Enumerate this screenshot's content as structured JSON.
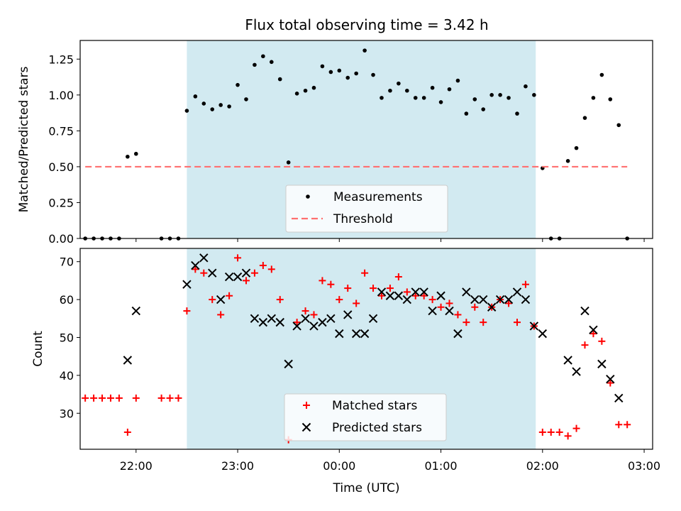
{
  "chart_data": [
    {
      "type": "scatter",
      "title": "Flux total observing time = 3.42 h",
      "xlabel": "",
      "ylabel": "Matched/Predicted stars",
      "ylim": [
        0,
        1.38
      ],
      "yticks": [
        "0.00",
        "0.25",
        "0.50",
        "0.75",
        "1.00",
        "1.25"
      ],
      "xlim": [
        "21:27",
        "03:05"
      ],
      "shaded_interval": [
        "22:30",
        "01:56"
      ],
      "shaded_color": "#add8e6",
      "legend_placement": "lower center",
      "series": [
        {
          "name": "Measurements",
          "marker": "dot",
          "color": "#000000",
          "points": [
            [
              "21:30",
              0
            ],
            [
              "21:35",
              0
            ],
            [
              "21:40",
              0
            ],
            [
              "21:45",
              0
            ],
            [
              "21:50",
              0
            ],
            [
              "21:55",
              0.57
            ],
            [
              "22:00",
              0.59
            ],
            [
              "22:15",
              0
            ],
            [
              "22:20",
              0
            ],
            [
              "22:25",
              0
            ],
            [
              "22:30",
              0.89
            ],
            [
              "22:35",
              0.99
            ],
            [
              "22:40",
              0.94
            ],
            [
              "22:45",
              0.9
            ],
            [
              "22:50",
              0.93
            ],
            [
              "22:55",
              0.92
            ],
            [
              "23:00",
              1.07
            ],
            [
              "23:05",
              0.97
            ],
            [
              "23:10",
              1.21
            ],
            [
              "23:15",
              1.27
            ],
            [
              "23:20",
              1.23
            ],
            [
              "23:25",
              1.11
            ],
            [
              "23:30",
              0.53
            ],
            [
              "23:35",
              1.01
            ],
            [
              "23:40",
              1.03
            ],
            [
              "23:45",
              1.05
            ],
            [
              "23:50",
              1.2
            ],
            [
              "23:55",
              1.16
            ],
            [
              "00:00",
              1.17
            ],
            [
              "00:05",
              1.12
            ],
            [
              "00:10",
              1.15
            ],
            [
              "00:15",
              1.31
            ],
            [
              "00:20",
              1.14
            ],
            [
              "00:25",
              0.98
            ],
            [
              "00:30",
              1.03
            ],
            [
              "00:35",
              1.08
            ],
            [
              "00:40",
              1.03
            ],
            [
              "00:45",
              0.98
            ],
            [
              "00:50",
              0.98
            ],
            [
              "00:55",
              1.05
            ],
            [
              "01:00",
              0.95
            ],
            [
              "01:05",
              1.04
            ],
            [
              "01:10",
              1.1
            ],
            [
              "01:15",
              0.87
            ],
            [
              "01:20",
              0.97
            ],
            [
              "01:25",
              0.9
            ],
            [
              "01:30",
              1.0
            ],
            [
              "01:35",
              1.0
            ],
            [
              "01:40",
              0.98
            ],
            [
              "01:45",
              0.87
            ],
            [
              "01:50",
              1.06
            ],
            [
              "01:55",
              1.0
            ],
            [
              "02:00",
              0.49
            ],
            [
              "02:05",
              0
            ],
            [
              "02:10",
              0
            ],
            [
              "02:15",
              0.54
            ],
            [
              "02:20",
              0.63
            ],
            [
              "02:25",
              0.84
            ],
            [
              "02:30",
              0.98
            ],
            [
              "02:35",
              1.14
            ],
            [
              "02:40",
              0.97
            ],
            [
              "02:45",
              0.79
            ],
            [
              "02:50",
              0
            ]
          ]
        },
        {
          "name": "Threshold",
          "marker": "dashed-line",
          "color": "#ff7070",
          "points": [
            [
              "21:30",
              0.5
            ],
            [
              "02:50",
              0.5
            ]
          ]
        }
      ]
    },
    {
      "type": "scatter",
      "title": "",
      "xlabel": "Time (UTC)",
      "ylabel": "Count",
      "ylim": [
        20.5,
        73.5
      ],
      "yticks": [
        "30",
        "40",
        "50",
        "60",
        "70"
      ],
      "xlim": [
        "21:27",
        "03:05"
      ],
      "xticks": [
        "22:00",
        "23:00",
        "00:00",
        "01:00",
        "02:00",
        "03:00"
      ],
      "shaded_interval": [
        "22:30",
        "01:56"
      ],
      "shaded_color": "#add8e6",
      "legend_placement": "lower center",
      "series": [
        {
          "name": "Matched stars",
          "marker": "plus",
          "color": "#ff0000",
          "points": [
            [
              "21:30",
              34
            ],
            [
              "21:35",
              34
            ],
            [
              "21:40",
              34
            ],
            [
              "21:45",
              34
            ],
            [
              "21:50",
              34
            ],
            [
              "21:55",
              25
            ],
            [
              "22:00",
              34
            ],
            [
              "22:15",
              34
            ],
            [
              "22:20",
              34
            ],
            [
              "22:25",
              34
            ],
            [
              "22:30",
              57
            ],
            [
              "22:35",
              68
            ],
            [
              "22:40",
              67
            ],
            [
              "22:45",
              60
            ],
            [
              "22:50",
              56
            ],
            [
              "22:55",
              61
            ],
            [
              "23:00",
              71
            ],
            [
              "23:05",
              65
            ],
            [
              "23:10",
              67
            ],
            [
              "23:15",
              69
            ],
            [
              "23:20",
              68
            ],
            [
              "23:25",
              60
            ],
            [
              "23:30",
              23
            ],
            [
              "23:35",
              54
            ],
            [
              "23:40",
              57
            ],
            [
              "23:45",
              56
            ],
            [
              "23:50",
              65
            ],
            [
              "23:55",
              64
            ],
            [
              "00:00",
              60
            ],
            [
              "00:05",
              63
            ],
            [
              "00:10",
              59
            ],
            [
              "00:15",
              67
            ],
            [
              "00:20",
              63
            ],
            [
              "00:25",
              61
            ],
            [
              "00:30",
              63
            ],
            [
              "00:35",
              66
            ],
            [
              "00:40",
              62
            ],
            [
              "00:45",
              61
            ],
            [
              "00:50",
              61
            ],
            [
              "00:55",
              60
            ],
            [
              "01:00",
              58
            ],
            [
              "01:05",
              59
            ],
            [
              "01:10",
              56
            ],
            [
              "01:15",
              54
            ],
            [
              "01:20",
              58
            ],
            [
              "01:25",
              54
            ],
            [
              "01:30",
              58
            ],
            [
              "01:35",
              60
            ],
            [
              "01:40",
              59
            ],
            [
              "01:45",
              54
            ],
            [
              "01:50",
              64
            ],
            [
              "01:55",
              53
            ],
            [
              "02:00",
              25
            ],
            [
              "02:05",
              25
            ],
            [
              "02:10",
              25
            ],
            [
              "02:15",
              24
            ],
            [
              "02:20",
              26
            ],
            [
              "02:25",
              48
            ],
            [
              "02:30",
              51
            ],
            [
              "02:35",
              49
            ],
            [
              "02:40",
              38
            ],
            [
              "02:45",
              27
            ],
            [
              "02:50",
              27
            ]
          ]
        },
        {
          "name": "Predicted stars",
          "marker": "x",
          "color": "#000000",
          "points": [
            [
              "21:55",
              44
            ],
            [
              "22:00",
              57
            ],
            [
              "22:30",
              64
            ],
            [
              "22:35",
              69
            ],
            [
              "22:40",
              71
            ],
            [
              "22:45",
              67
            ],
            [
              "22:50",
              60
            ],
            [
              "22:55",
              66
            ],
            [
              "23:00",
              66
            ],
            [
              "23:05",
              67
            ],
            [
              "23:10",
              55
            ],
            [
              "23:15",
              54
            ],
            [
              "23:20",
              55
            ],
            [
              "23:25",
              54
            ],
            [
              "23:30",
              43
            ],
            [
              "23:35",
              53
            ],
            [
              "23:40",
              55
            ],
            [
              "23:45",
              53
            ],
            [
              "23:50",
              54
            ],
            [
              "23:55",
              55
            ],
            [
              "00:00",
              51
            ],
            [
              "00:05",
              56
            ],
            [
              "00:10",
              51
            ],
            [
              "00:15",
              51
            ],
            [
              "00:20",
              55
            ],
            [
              "00:25",
              62
            ],
            [
              "00:30",
              61
            ],
            [
              "00:35",
              61
            ],
            [
              "00:40",
              60
            ],
            [
              "00:45",
              62
            ],
            [
              "00:50",
              62
            ],
            [
              "00:55",
              57
            ],
            [
              "01:00",
              61
            ],
            [
              "01:05",
              57
            ],
            [
              "01:10",
              51
            ],
            [
              "01:15",
              62
            ],
            [
              "01:20",
              60
            ],
            [
              "01:25",
              60
            ],
            [
              "01:30",
              58
            ],
            [
              "01:35",
              60
            ],
            [
              "01:40",
              60
            ],
            [
              "01:45",
              62
            ],
            [
              "01:50",
              60
            ],
            [
              "01:55",
              53
            ],
            [
              "02:00",
              51
            ],
            [
              "02:15",
              44
            ],
            [
              "02:20",
              41
            ],
            [
              "02:25",
              57
            ],
            [
              "02:30",
              52
            ],
            [
              "02:35",
              43
            ],
            [
              "02:40",
              39
            ],
            [
              "02:45",
              34
            ]
          ]
        }
      ]
    }
  ]
}
